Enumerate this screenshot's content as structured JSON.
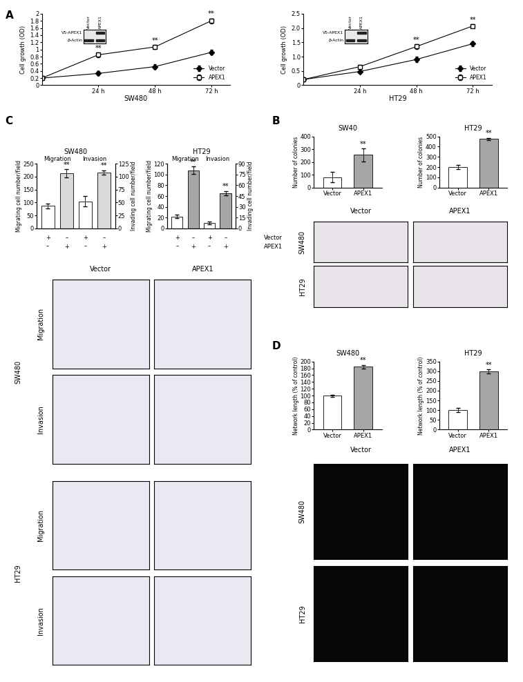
{
  "panel_labels": [
    "A",
    "B",
    "C",
    "D"
  ],
  "chart_data": [
    {
      "panel": "A",
      "type": "line",
      "title": "SW480",
      "ylabel": "Cell growth (OD)",
      "x": [
        0,
        24,
        48,
        72
      ],
      "xlim": [
        0,
        80
      ],
      "xticks": [
        {
          "value": 24,
          "label": "24 h"
        },
        {
          "value": 48,
          "label": "48 h"
        },
        {
          "value": 72,
          "label": "72 h"
        }
      ],
      "ylim": [
        0,
        2
      ],
      "yticks": [
        0,
        0.2,
        0.4,
        0.6,
        0.8,
        1,
        1.2,
        1.4,
        1.6,
        1.8,
        2
      ],
      "legend": "lower right",
      "series": [
        {
          "name": "Vector",
          "color": "#000000",
          "marker": "diamond",
          "values": [
            0.2,
            0.33,
            0.52,
            0.92
          ],
          "errors": [
            0.02,
            0.06,
            0.06,
            0.07
          ]
        },
        {
          "name": "APEX1",
          "color": "#000000",
          "marker": "square",
          "values": [
            0.2,
            0.85,
            1.07,
            1.8
          ],
          "errors": [
            0.02,
            0.06,
            0.05,
            0.07
          ],
          "significance": [
            null,
            "**",
            "**",
            "**"
          ]
        }
      ],
      "blot": {
        "lanes": [
          "Vector",
          "APEX1"
        ],
        "rows": [
          {
            "label": "V5-APEX1",
            "bands": [
              false,
              true
            ]
          },
          {
            "label": "β-Actin",
            "bands": [
              true,
              true
            ]
          }
        ]
      }
    },
    {
      "panel": "A",
      "type": "line",
      "title": "HT29",
      "ylabel": "Cell growth (OD)",
      "x": [
        0,
        24,
        48,
        72
      ],
      "xlim": [
        0,
        80
      ],
      "xticks": [
        {
          "value": 24,
          "label": "24 h"
        },
        {
          "value": 48,
          "label": "48 h"
        },
        {
          "value": 72,
          "label": "72 h"
        }
      ],
      "ylim": [
        0,
        2.5
      ],
      "yticks": [
        0,
        0.5,
        1.0,
        1.5,
        2.0,
        2.5
      ],
      "legend": "lower right",
      "series": [
        {
          "name": "Vector",
          "color": "#000000",
          "marker": "diamond",
          "values": [
            0.2,
            0.48,
            0.9,
            1.45
          ],
          "errors": [
            0.02,
            0.04,
            0.1,
            0.08
          ]
        },
        {
          "name": "APEX1",
          "color": "#000000",
          "marker": "square",
          "values": [
            0.2,
            0.65,
            1.35,
            2.07
          ],
          "errors": [
            0.02,
            0.05,
            0.08,
            0.06
          ],
          "significance": [
            null,
            null,
            "**",
            "**"
          ]
        }
      ],
      "blot": {
        "lanes": [
          "Vector",
          "APEX1"
        ],
        "rows": [
          {
            "label": "V5-APEX1",
            "bands": [
              false,
              true
            ]
          },
          {
            "label": "β-Actin",
            "bands": [
              true,
              true
            ]
          }
        ]
      }
    },
    {
      "panel": "B",
      "type": "bar",
      "title": "SW40",
      "ylabel": "Number of colonies",
      "categories": [
        "Vector",
        "APEX1"
      ],
      "values": [
        80,
        255
      ],
      "errors": [
        40,
        50
      ],
      "colors": [
        "#ffffff",
        "#a6a6a6"
      ],
      "significance": [
        null,
        "**"
      ],
      "ylim": [
        0,
        400
      ],
      "yticks": [
        0,
        100,
        200,
        300,
        400
      ]
    },
    {
      "panel": "B",
      "type": "bar",
      "title": "HT29",
      "ylabel": "Number of colonies",
      "categories": [
        "Vector",
        "APEX1"
      ],
      "values": [
        200,
        475
      ],
      "errors": [
        18,
        12
      ],
      "colors": [
        "#ffffff",
        "#a6a6a6"
      ],
      "significance": [
        null,
        "**"
      ],
      "ylim": [
        0,
        500
      ],
      "yticks": [
        0,
        100,
        200,
        300,
        400,
        500
      ]
    },
    {
      "panel": "C",
      "type": "bar",
      "title": "SW480",
      "ylabel": "Migrating cell number/field",
      "y2label": "Invading cell number/field",
      "categories": [
        null,
        null,
        null,
        null
      ],
      "colors": [
        "#ffffff",
        "#d9d9d9",
        "#ffffff",
        "#d9d9d9"
      ],
      "series": [
        {
          "name": "Migration",
          "values": [
            87,
            213,
            null,
            null
          ],
          "errors": [
            10,
            15,
            null,
            null
          ],
          "significance": [
            null,
            "**",
            null,
            null
          ]
        },
        {
          "name": "Invasion",
          "axis": "y2",
          "values": [
            null,
            null,
            52,
            108
          ],
          "errors": [
            null,
            null,
            10,
            4
          ],
          "significance": [
            null,
            null,
            null,
            "**"
          ]
        }
      ],
      "x_rows": [
        {
          "values": [
            "+",
            "–",
            "+",
            "–"
          ]
        },
        {
          "values": [
            "–",
            "+",
            "–",
            "+"
          ]
        }
      ],
      "ylim": [
        0,
        250
      ],
      "yticks": [
        0,
        50,
        100,
        150,
        200,
        250
      ],
      "y2lim": [
        0,
        125
      ],
      "y2ticks": [
        0,
        25,
        50,
        75,
        100,
        125
      ]
    },
    {
      "panel": "C",
      "type": "bar",
      "title": "HT29",
      "ylabel": "Migrating cell number/field",
      "y2label": "Invading cell number/field",
      "categories": [
        null,
        null,
        null,
        null
      ],
      "colors": [
        "#ffffff",
        "#a6a6a6",
        "#ffffff",
        "#a6a6a6"
      ],
      "series": [
        {
          "name": "Migration",
          "values": [
            22,
            108,
            null,
            null
          ],
          "errors": [
            3,
            7,
            null,
            null
          ],
          "significance": [
            null,
            "**",
            null,
            null
          ]
        },
        {
          "name": "Invasion",
          "axis": "y2",
          "values": [
            null,
            null,
            8,
            49
          ],
          "errors": [
            null,
            null,
            2,
            3
          ],
          "significance": [
            null,
            null,
            null,
            "**"
          ]
        }
      ],
      "x_rows": [
        {
          "label": "Vector",
          "values": [
            "+",
            "–",
            "+",
            "–"
          ]
        },
        {
          "label": "APEX1",
          "values": [
            "–",
            "+",
            "–",
            "+"
          ]
        }
      ],
      "ylim": [
        0,
        120
      ],
      "yticks": [
        0,
        20,
        40,
        60,
        80,
        100,
        120
      ],
      "y2lim": [
        0,
        90
      ],
      "y2ticks": [
        0,
        15,
        30,
        45,
        60,
        75,
        90
      ]
    },
    {
      "panel": "D",
      "type": "bar",
      "title": "SW480",
      "ylabel": "Network length (% of control)",
      "categories": [
        "Vector",
        "APEX1"
      ],
      "values": [
        100,
        185
      ],
      "errors": [
        3,
        5
      ],
      "colors": [
        "#ffffff",
        "#a6a6a6"
      ],
      "significance": [
        null,
        "**"
      ],
      "ylim": [
        0,
        200
      ],
      "yticks": [
        0,
        20,
        40,
        60,
        80,
        100,
        120,
        140,
        160,
        180,
        200
      ]
    },
    {
      "panel": "D",
      "type": "bar",
      "title": "HT29",
      "ylabel": "Network length (% of control)",
      "categories": [
        "Vector",
        "APEX1"
      ],
      "values": [
        100,
        298
      ],
      "errors": [
        10,
        10
      ],
      "colors": [
        "#ffffff",
        "#a6a6a6"
      ],
      "significance": [
        null,
        "**"
      ],
      "ylim": [
        0,
        350
      ],
      "yticks": [
        0,
        50,
        100,
        150,
        200,
        250,
        300,
        350
      ]
    }
  ],
  "image_panels": [
    {
      "panel": "B",
      "columns": [
        "Vector",
        "APEX1"
      ],
      "rows": [
        {
          "label": "SW480"
        },
        {
          "label": "HT29"
        }
      ]
    },
    {
      "panel": "C",
      "columns": [
        "Vector",
        "APEX1"
      ],
      "rows": [
        {
          "group": "SW480",
          "label": "Migration"
        },
        {
          "group": "SW480",
          "label": "Invasion"
        },
        {
          "group": "HT29",
          "label": "Migration"
        },
        {
          "group": "HT29",
          "label": "Invasion"
        }
      ]
    },
    {
      "panel": "D",
      "columns": [
        "Vector",
        "APEX1"
      ],
      "rows": [
        {
          "label": "SW480"
        },
        {
          "label": "HT29"
        }
      ]
    }
  ]
}
